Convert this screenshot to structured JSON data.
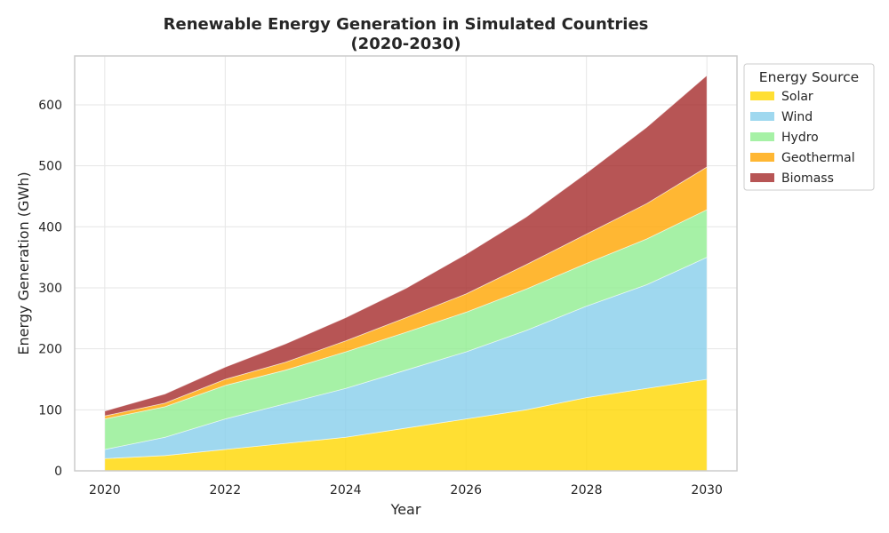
{
  "chart_data": {
    "type": "area",
    "stacked": true,
    "title_lines": [
      "Renewable Energy Generation in Simulated Countries",
      "(2020-2030)"
    ],
    "xlabel": "Year",
    "ylabel": "Energy Generation (GWh)",
    "x": [
      2020,
      2021,
      2022,
      2023,
      2024,
      2025,
      2026,
      2027,
      2028,
      2029,
      2030
    ],
    "xlim": [
      2019.5,
      2030.5
    ],
    "ylim": [
      0,
      680
    ],
    "x_ticks": [
      2020,
      2022,
      2024,
      2026,
      2028,
      2030
    ],
    "y_ticks": [
      0,
      100,
      200,
      300,
      400,
      500,
      600
    ],
    "grid": true,
    "legend_title": "Energy Source",
    "legend_position": "outside-upper-right",
    "series": [
      {
        "name": "Solar",
        "color": "#ffd700",
        "values": [
          20,
          25,
          35,
          45,
          55,
          70,
          85,
          100,
          120,
          135,
          150
        ]
      },
      {
        "name": "Wind",
        "color": "#87ceeb",
        "values": [
          15,
          30,
          50,
          65,
          80,
          95,
          110,
          130,
          150,
          170,
          200
        ]
      },
      {
        "name": "Hydro",
        "color": "#90ee90",
        "values": [
          50,
          50,
          55,
          55,
          60,
          62,
          65,
          68,
          70,
          75,
          78
        ]
      },
      {
        "name": "Geothermal",
        "color": "#ffa500",
        "values": [
          5,
          6,
          10,
          13,
          18,
          24,
          30,
          40,
          48,
          58,
          70
        ]
      },
      {
        "name": "Biomass",
        "color": "#a52a2a",
        "values": [
          8,
          15,
          20,
          30,
          38,
          48,
          65,
          78,
          100,
          125,
          150
        ]
      }
    ]
  }
}
